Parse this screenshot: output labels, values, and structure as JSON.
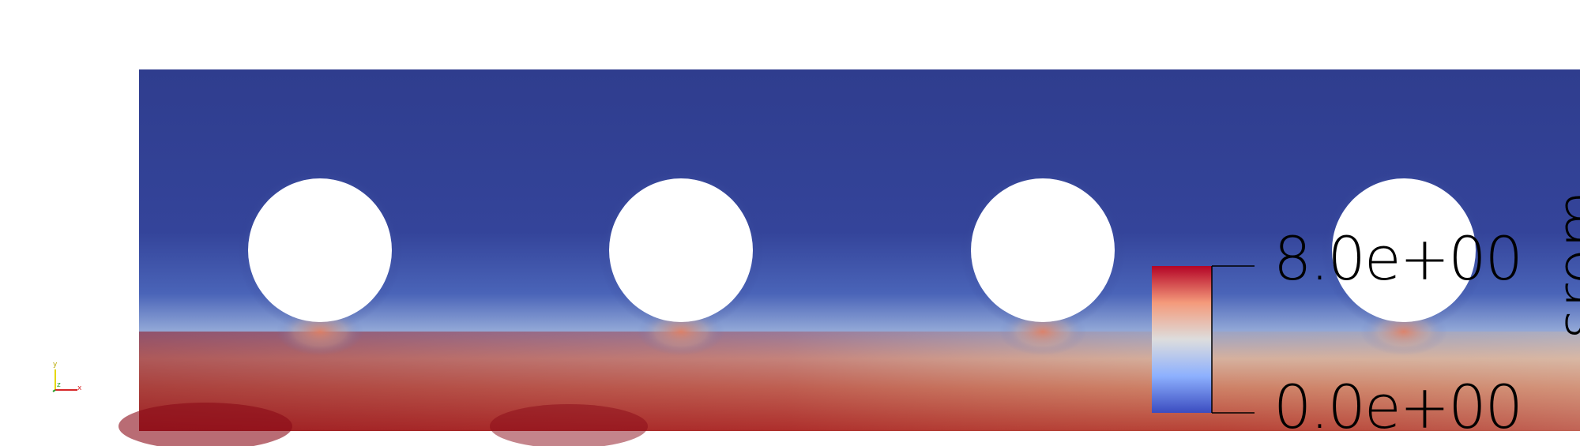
{
  "scene": {
    "field": {
      "name": "srom",
      "range": [
        0.0,
        8.0
      ],
      "colormap": [
        "#3b4cc0",
        "#8db0fe",
        "#dddddd",
        "#f49a7b",
        "#b40426"
      ]
    },
    "obstacles": {
      "count": 4,
      "shape": "circle"
    },
    "background_color": "#ffffff",
    "domain_fill_low": "#2e3e8f"
  },
  "color_legend": {
    "title": "srom",
    "max_label": "8.0e+00",
    "min_label": "0.0e+00"
  },
  "orientation_axes": {
    "x_label": "x",
    "y_label": "y",
    "z_label": "z",
    "x_color": "#d62728",
    "y_color": "#e6d800",
    "z_color": "#2ca02c"
  }
}
